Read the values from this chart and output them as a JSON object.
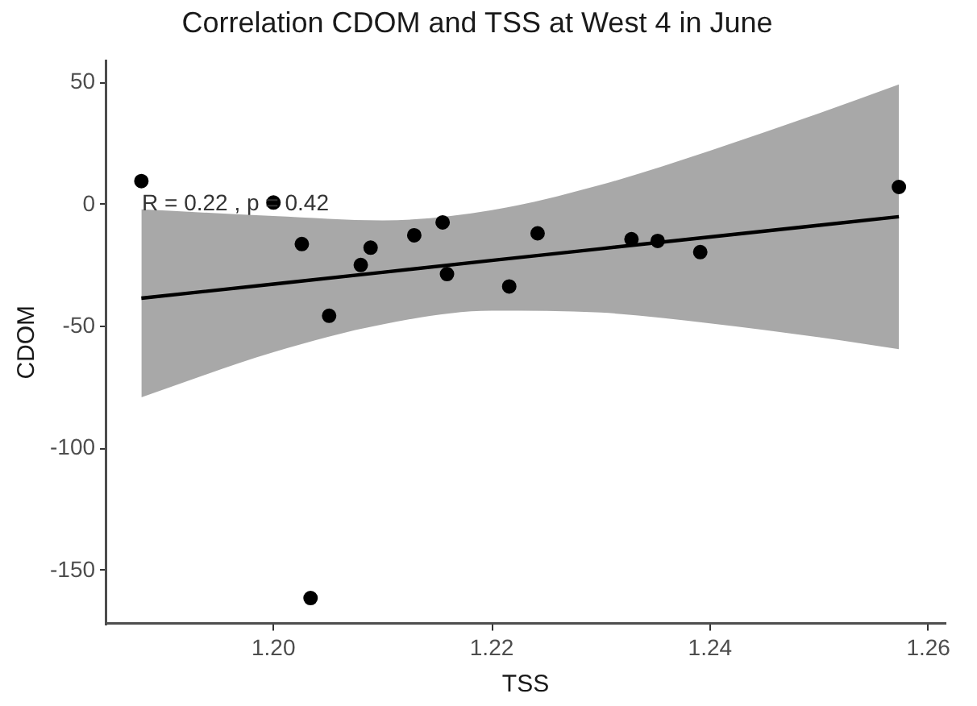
{
  "chart_data": {
    "type": "scatter",
    "title": "Correlation CDOM and TSS at West 4 in June",
    "xlabel": "TSS",
    "ylabel": "CDOM",
    "xlim": [
      1.1847,
      1.2615
    ],
    "ylim": [
      -172,
      59
    ],
    "xticks": [
      {
        "value": 1.2,
        "label": "1.20"
      },
      {
        "value": 1.22,
        "label": "1.22"
      },
      {
        "value": 1.24,
        "label": "1.24"
      },
      {
        "value": 1.26,
        "label": "1.26"
      }
    ],
    "yticks": [
      50,
      0,
      -50,
      -100,
      -150
    ],
    "grid": false,
    "legend": false,
    "marker": "circle",
    "annotations": [
      "R = 0.22 , p = 0.42"
    ],
    "series": [
      {
        "type": "scatter",
        "color": "#000000",
        "x": [
          1.1879,
          1.2,
          1.2026,
          1.2051,
          1.208,
          1.2089,
          1.2129,
          1.2155,
          1.2159,
          1.2034,
          1.2242,
          1.2216,
          1.2328,
          1.2352,
          1.2391,
          1.2573
        ],
        "values": [
          9.6,
          0.8,
          -16.2,
          -45.6,
          -24.8,
          -17.7,
          -12.6,
          -7.3,
          -28.5,
          -161.3,
          -11.8,
          -33.6,
          -14.2,
          -14.9,
          -19.5,
          7.2
        ]
      },
      {
        "type": "line",
        "color": "#000000",
        "line_style": "solid",
        "marker": "none",
        "x": [
          1.1879,
          1.2,
          1.21,
          1.22,
          1.23,
          1.24,
          1.25,
          1.2573
        ],
        "values": [
          -38.4,
          -32.6,
          -27.8,
          -22.9,
          -18.1,
          -13.3,
          -8.5,
          -5.0
        ],
        "lower": [
          -79,
          -60.5,
          -49.1,
          -43.5,
          -44.3,
          -48.7,
          -54.4,
          -59.3
        ],
        "upper": [
          -2,
          -4.7,
          -6.5,
          -2.3,
          8.1,
          22.1,
          37.4,
          49.2
        ]
      }
    ]
  }
}
